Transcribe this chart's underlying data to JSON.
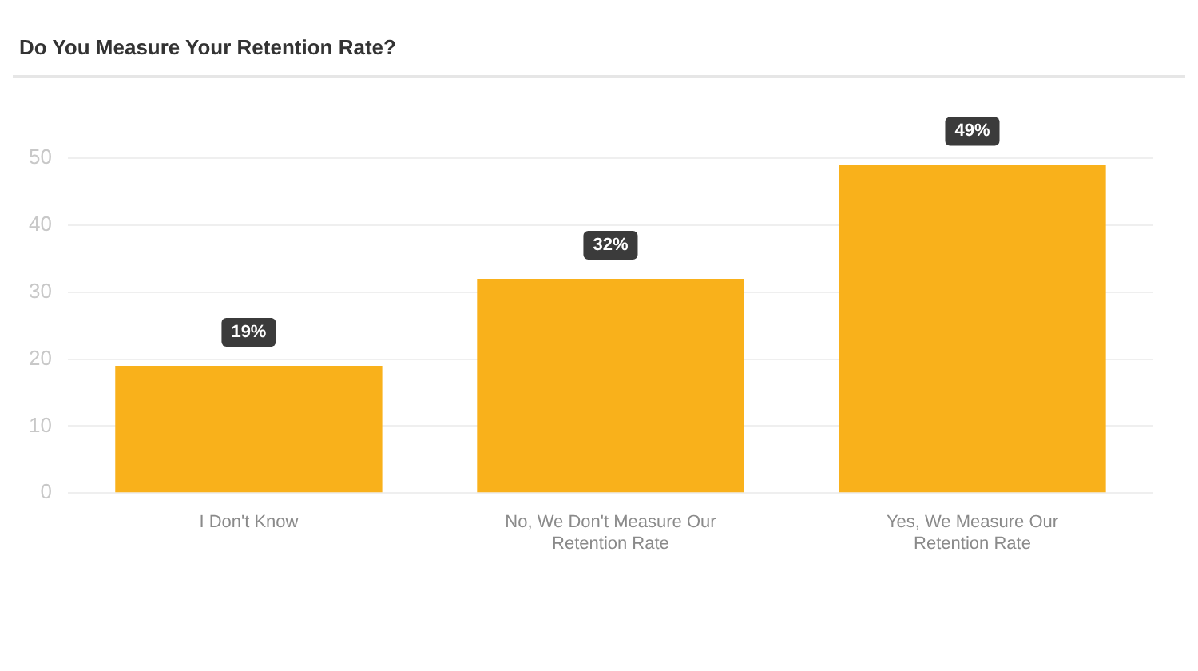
{
  "chart_data": {
    "type": "bar",
    "title": "Do You Measure Your Retention Rate?",
    "categories": [
      "I Don't Know",
      "No, We Don't Measure Our Retention Rate",
      "Yes, We Measure Our Retention Rate"
    ],
    "values": [
      19,
      32,
      49
    ],
    "value_labels": [
      "19%",
      "32%",
      "49%"
    ],
    "color": "#f9b11b",
    "ylim": [
      0,
      50
    ],
    "yticks": [
      0,
      10,
      20,
      30,
      40,
      50
    ],
    "grid": "y"
  }
}
